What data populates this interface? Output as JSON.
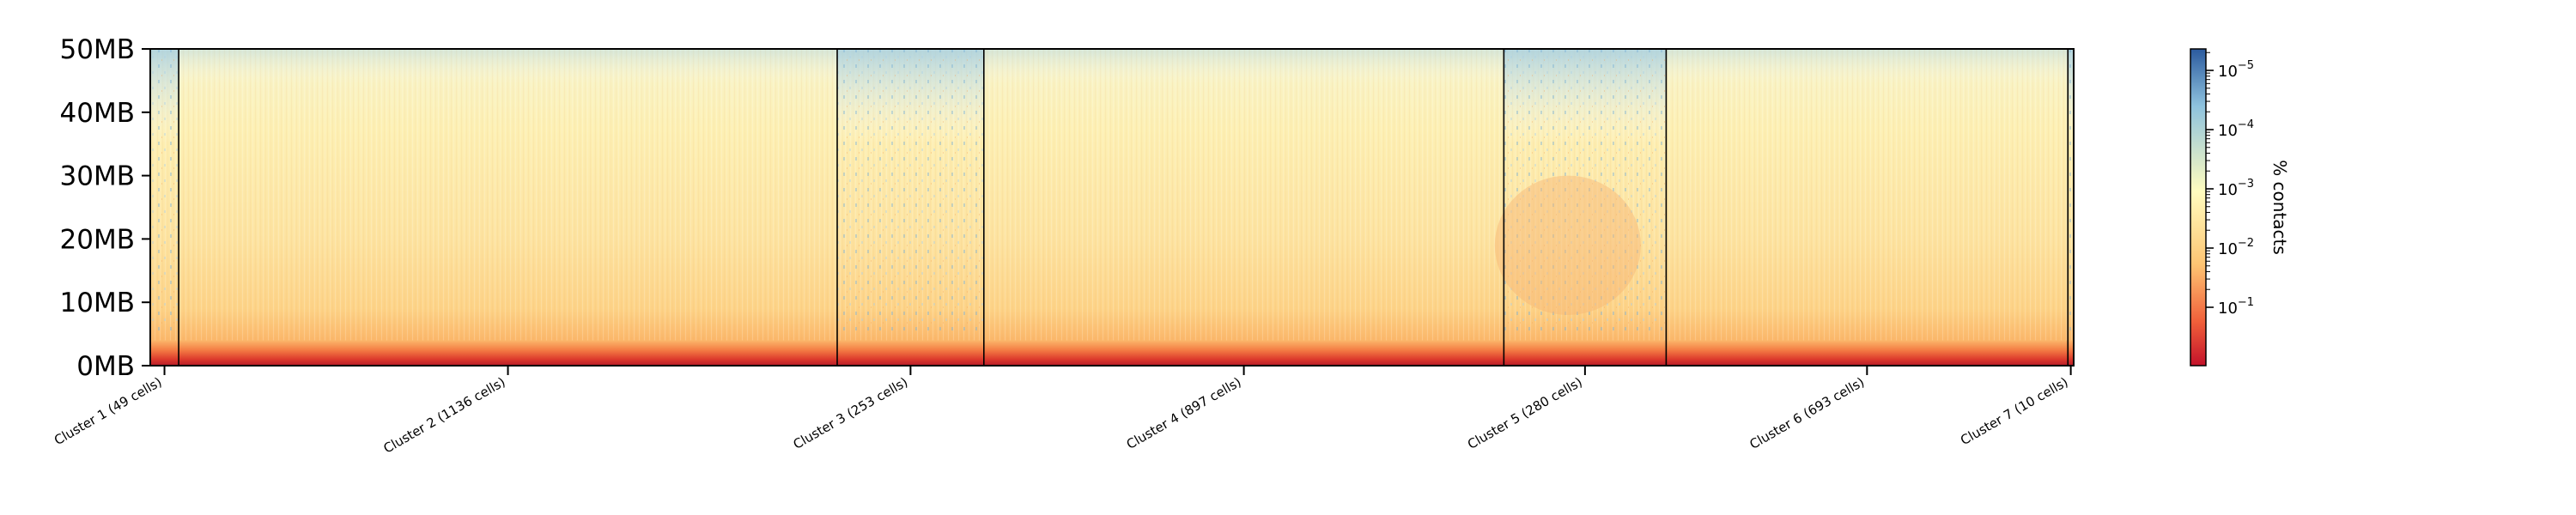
{
  "chart_data": {
    "type": "heatmap",
    "title": "",
    "xlabel": "",
    "ylabel": "",
    "y_ticks": [
      "0MB",
      "10MB",
      "20MB",
      "30MB",
      "40MB",
      "50MB"
    ],
    "y_range_mb": [
      0,
      50
    ],
    "clusters": [
      {
        "label": "Cluster 1 (49 cells)",
        "cells": 49
      },
      {
        "label": "Cluster 2 (1136 cells)",
        "cells": 1136
      },
      {
        "label": "Cluster 3 (253 cells)",
        "cells": 253
      },
      {
        "label": "Cluster 4 (897 cells)",
        "cells": 897
      },
      {
        "label": "Cluster 5 (280 cells)",
        "cells": 280
      },
      {
        "label": "Cluster 6 (693 cells)",
        "cells": 693
      },
      {
        "label": "Cluster 7 (10 cells)",
        "cells": 10
      }
    ],
    "colorbar": {
      "label": "% contacts",
      "scale": "log",
      "colormap": "RdYlBu",
      "reversed_axis": true,
      "tick_labels": [
        {
          "base": "10",
          "exp": "−5"
        },
        {
          "base": "10",
          "exp": "−4"
        },
        {
          "base": "10",
          "exp": "−3"
        },
        {
          "base": "10",
          "exp": "−2"
        },
        {
          "base": "10",
          "exp": "−1"
        }
      ],
      "colors": [
        "#2b5a9e",
        "#8ec2de",
        "#fffdbf",
        "#fec573",
        "#f1603a",
        "#c3122a"
      ]
    },
    "grid": false,
    "legend": "colorbar-right"
  }
}
